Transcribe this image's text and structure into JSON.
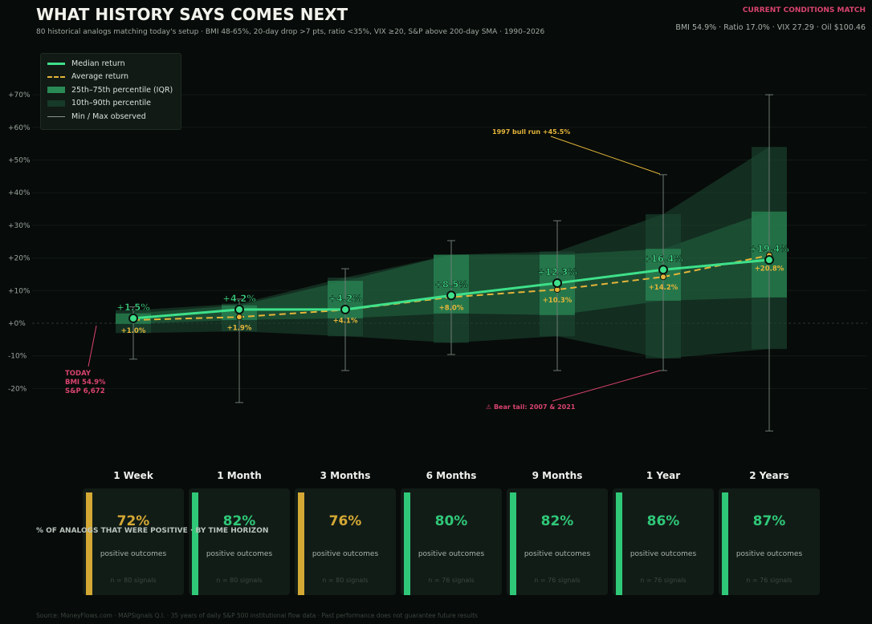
{
  "header": {
    "title": "WHAT HISTORY SAYS COMES NEXT",
    "subtitle": "80 historical analogs matching today's setup  ·  BMI 48-65%,  20-day drop >7 pts,  ratio <35%,  VIX ≥20,  S&P above 200-day SMA  ·  1990–2026"
  },
  "conditions": {
    "title": "CURRENT CONDITIONS MATCH",
    "values": "BMI 54.9%  ·  Ratio 17.0%  ·  VIX 27.29  ·  Oil $100.46"
  },
  "colors": {
    "median": "#3ee08a",
    "average": "#e3b53a",
    "iqr": "#2a8a56",
    "band": "#173a29",
    "today": "#d9436f",
    "card_gold": "#d4a834",
    "card_green": "#2fc878"
  },
  "chart_data": {
    "type": "line",
    "categories": [
      "1 Week",
      "1 Month",
      "3 Months",
      "6 Months",
      "9 Months",
      "1 Year",
      "2 Years"
    ],
    "ylim": [
      -35,
      75
    ],
    "yticks": [
      {
        "v": 70,
        "label": "+70%"
      },
      {
        "v": 60,
        "label": "+60%"
      },
      {
        "v": 50,
        "label": "+50%"
      },
      {
        "v": 40,
        "label": "+40%"
      },
      {
        "v": 30,
        "label": "+30%"
      },
      {
        "v": 20,
        "label": "+20%"
      },
      {
        "v": 10,
        "label": "+10%"
      },
      {
        "v": 0,
        "label": "+0%"
      },
      {
        "v": -10,
        "label": "-10%"
      },
      {
        "v": -20,
        "label": "-20%"
      }
    ],
    "grid": true,
    "legend_position": "top-left",
    "legend": [
      "Median return",
      "Average return",
      "25th–75th percentile (IQR)",
      "10th–90th percentile",
      "Min / Max observed"
    ],
    "median": [
      1.5,
      4.2,
      4.2,
      8.5,
      12.3,
      16.4,
      19.4
    ],
    "median_labels": [
      "+1.5%",
      "+4.2%",
      "+4.2%",
      "+8.5%",
      "+12.3%",
      "+16.4%",
      "+19.4%"
    ],
    "average": [
      1.0,
      1.9,
      4.1,
      8.0,
      10.3,
      14.2,
      20.8
    ],
    "average_labels": [
      "+1.0%",
      "+1.9%",
      "+4.1%",
      "+8.0%",
      "+10.3%",
      "+14.2%",
      "+20.8%"
    ],
    "p25": [
      -0.2,
      1,
      1.5,
      3,
      2.5,
      6.9,
      7.9
    ],
    "p75": [
      3,
      5.5,
      13,
      21,
      21,
      22.8,
      34.2
    ],
    "p10": [
      -3,
      -2.5,
      -4,
      -6,
      -4,
      -10.8,
      -7.9
    ],
    "p90": [
      4,
      6,
      14,
      21,
      22,
      33.4,
      54
    ],
    "min": [
      -11,
      -24.3,
      -14.5,
      -9.6,
      -14.5,
      -14.5,
      -33
    ],
    "max": [
      5,
      7.4,
      16.7,
      25.3,
      31.4,
      45.5,
      70
    ],
    "annotations": {
      "bull": "1997 bull run  +45.5%",
      "bear": "⚠  Bear tail: 2007 & 2021",
      "today": [
        "TODAY",
        "BMI 54.9%",
        "S&P 6,672"
      ]
    }
  },
  "cards": {
    "overlay_title": "% OF ANALOGS THAT WERE POSITIVE  ·  BY TIME HORIZON",
    "items": [
      {
        "horizon": "1 Week",
        "pct": "72%",
        "label": "positive outcomes",
        "n": "n = 80 signals",
        "tone": "gold"
      },
      {
        "horizon": "1 Month",
        "pct": "82%",
        "label": "positive outcomes",
        "n": "n = 80 signals",
        "tone": "green"
      },
      {
        "horizon": "3 Months",
        "pct": "76%",
        "label": "positive outcomes",
        "n": "n = 80 signals",
        "tone": "gold"
      },
      {
        "horizon": "6 Months",
        "pct": "80%",
        "label": "positive outcomes",
        "n": "n = 76 signals",
        "tone": "green"
      },
      {
        "horizon": "9 Months",
        "pct": "82%",
        "label": "positive outcomes",
        "n": "n = 76 signals",
        "tone": "green"
      },
      {
        "horizon": "1 Year",
        "pct": "86%",
        "label": "positive outcomes",
        "n": "n = 76 signals",
        "tone": "green"
      },
      {
        "horizon": "2 Years",
        "pct": "87%",
        "label": "positive outcomes",
        "n": "n = 76 signals",
        "tone": "green"
      }
    ]
  },
  "footer": "Source: MoneyFlows.com  ·  MAPSignals Q.I.  ·  35 years of daily S&P 500 institutional flow data  ·  Past performance does not guarantee future results"
}
